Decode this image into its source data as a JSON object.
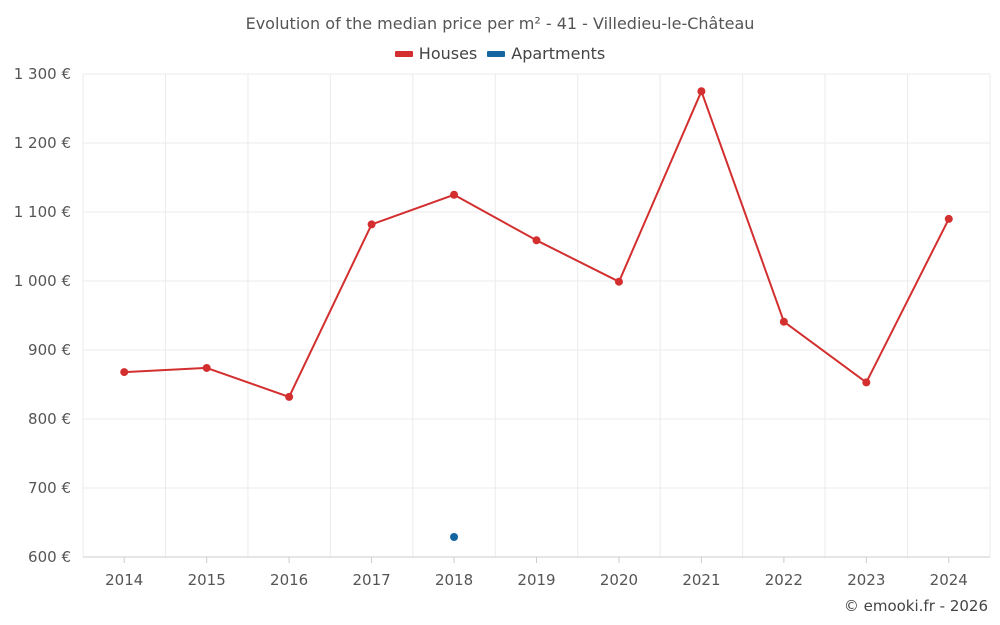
{
  "title": "Evolution of the median price per m² - 41 - Villedieu-le-Château",
  "credit": "© emooki.fr - 2026",
  "chart_data": {
    "type": "line",
    "categories": [
      "2014",
      "2015",
      "2016",
      "2017",
      "2018",
      "2019",
      "2020",
      "2021",
      "2022",
      "2023",
      "2024"
    ],
    "ylim": [
      600,
      1300
    ],
    "yticks": [
      600,
      700,
      800,
      900,
      1000,
      1100,
      1200,
      1300
    ],
    "ytick_labels": [
      "600 €",
      "700 €",
      "800 €",
      "900 €",
      "1 000 €",
      "1 100 €",
      "1 200 €",
      "1 300 €"
    ],
    "grid": true,
    "legend_position": "top-center",
    "series": [
      {
        "name": "Houses",
        "color": "#d32f2f",
        "values": [
          868,
          874,
          832,
          1082,
          1125,
          1059,
          999,
          1275,
          941,
          853,
          1090
        ]
      },
      {
        "name": "Apartments",
        "color": "#1565a0",
        "values": [
          null,
          null,
          null,
          null,
          629,
          null,
          null,
          null,
          null,
          null,
          null
        ]
      }
    ]
  }
}
